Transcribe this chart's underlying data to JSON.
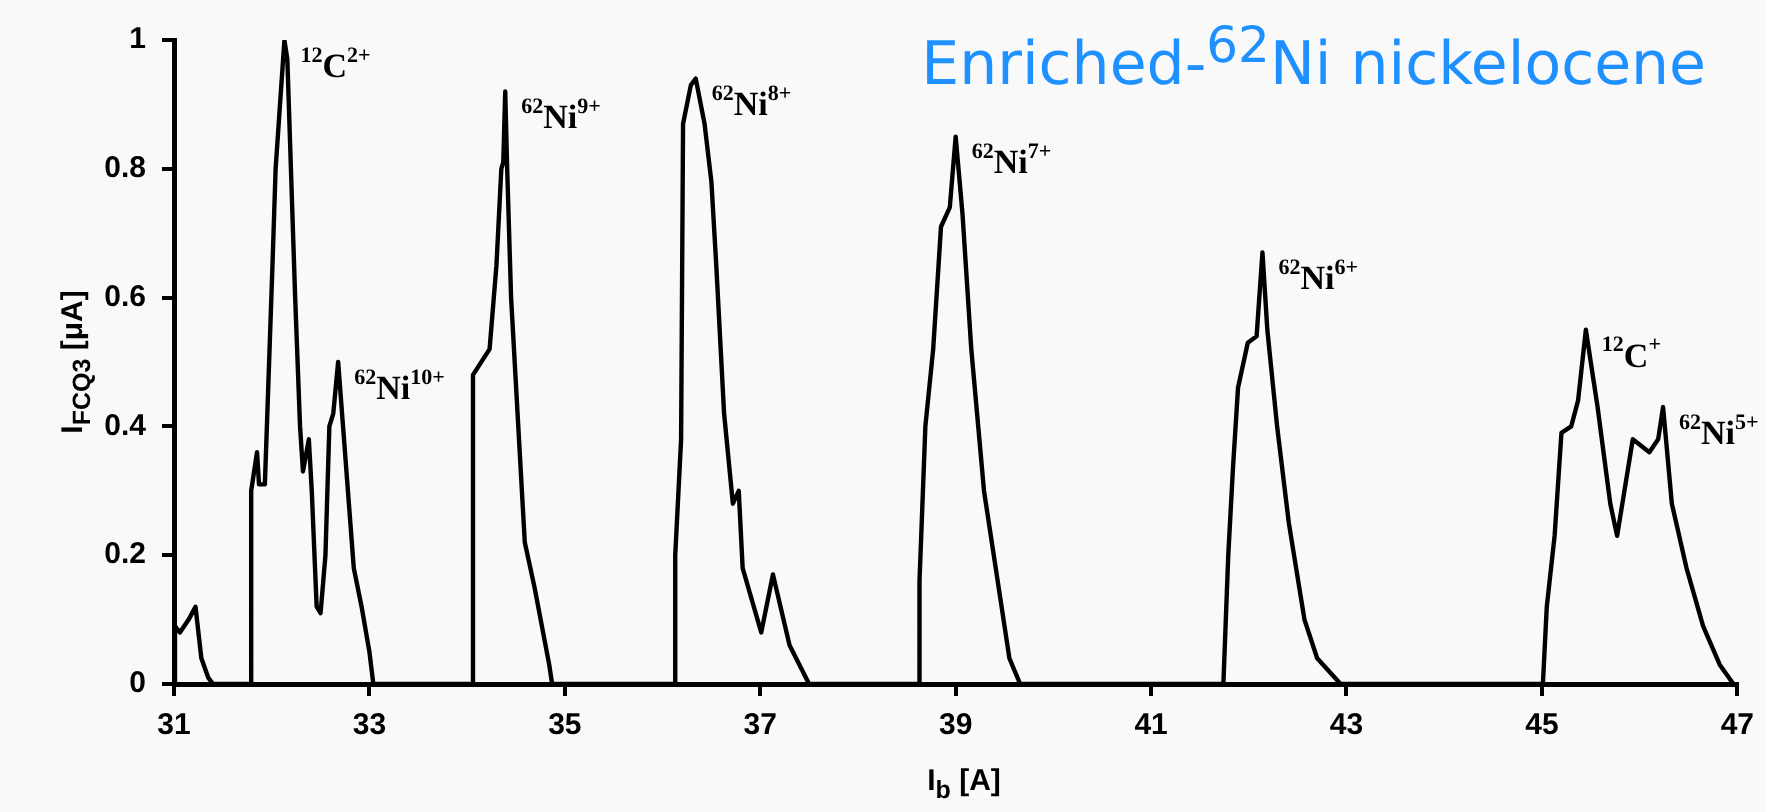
{
  "chart_data": {
    "type": "line",
    "title": "Enriched-$^{62}$Ni nickelocene",
    "xlabel": "I$_{b}$ [A]",
    "ylabel": "I$_{FCQ3}$ [μA]",
    "x": [
      31.0,
      31.01,
      31.06,
      31.15,
      31.22,
      31.28,
      31.35,
      31.4,
      31.78,
      31.79,
      31.85,
      31.87,
      31.93,
      32.01,
      32.04,
      32.13,
      32.16,
      32.24,
      32.29,
      32.32,
      32.38,
      32.41,
      32.46,
      32.5,
      32.55,
      32.59,
      32.63,
      32.68,
      32.73,
      32.84,
      32.92,
      33.0,
      33.04,
      34.05,
      34.06,
      34.23,
      34.3,
      34.35,
      34.37,
      34.39,
      34.41,
      34.45,
      34.59,
      34.69,
      34.84,
      34.87,
      36.12,
      36.13,
      36.19,
      36.21,
      36.29,
      36.34,
      36.43,
      36.5,
      36.55,
      36.63,
      36.72,
      36.78,
      36.82,
      37.01,
      37.13,
      37.3,
      37.5,
      38.62,
      38.63,
      38.69,
      38.77,
      38.85,
      38.94,
      39.0,
      39.07,
      39.16,
      39.29,
      39.5,
      39.55,
      39.66,
      41.74,
      41.79,
      41.84,
      41.89,
      41.99,
      42.08,
      42.14,
      42.19,
      42.29,
      42.41,
      42.57,
      42.7,
      42.94,
      45.01,
      45.05,
      45.13,
      45.2,
      45.3,
      45.37,
      45.45,
      45.57,
      45.7,
      45.77,
      45.93,
      46.1,
      46.19,
      46.24,
      46.33,
      46.48,
      46.65,
      46.82,
      46.96
    ],
    "series": [
      {
        "color": "#000000",
        "values": [
          0,
          0.09,
          0.08,
          0.1,
          0.12,
          0.04,
          0.01,
          0,
          0,
          0.3,
          0.36,
          0.31,
          0.31,
          0.66,
          0.8,
          1.0,
          0.97,
          0.6,
          0.4,
          0.33,
          0.38,
          0.3,
          0.12,
          0.11,
          0.2,
          0.4,
          0.42,
          0.5,
          0.4,
          0.18,
          0.12,
          0.05,
          0,
          0,
          0.48,
          0.52,
          0.65,
          0.8,
          0.81,
          0.92,
          0.8,
          0.6,
          0.22,
          0.15,
          0.03,
          0,
          0,
          0.2,
          0.38,
          0.87,
          0.93,
          0.94,
          0.87,
          0.78,
          0.65,
          0.42,
          0.28,
          0.3,
          0.18,
          0.08,
          0.17,
          0.06,
          0,
          0,
          0.16,
          0.4,
          0.52,
          0.71,
          0.74,
          0.85,
          0.73,
          0.52,
          0.3,
          0.09,
          0.04,
          0,
          0,
          0.2,
          0.34,
          0.46,
          0.53,
          0.54,
          0.67,
          0.55,
          0.4,
          0.25,
          0.1,
          0.04,
          0,
          0,
          0.12,
          0.23,
          0.39,
          0.4,
          0.44,
          0.55,
          0.43,
          0.28,
          0.23,
          0.38,
          0.36,
          0.38,
          0.43,
          0.28,
          0.18,
          0.09,
          0.03,
          0
        ]
      }
    ],
    "xlim": [
      31,
      47
    ],
    "xticks": [
      31,
      33,
      35,
      37,
      39,
      41,
      43,
      45,
      47
    ],
    "ylim": [
      0,
      1
    ],
    "yticks": [
      0,
      {
        "value": 0.2,
        "label": "0.2"
      },
      {
        "value": 0.4,
        "label": "0.4"
      },
      {
        "value": 0.6,
        "label": "0.6"
      },
      {
        "value": 0.8,
        "label": "0.8"
      },
      1
    ],
    "marker": "none",
    "line_style": "solid",
    "grid": false,
    "legend": false,
    "annotations": [
      {
        "text": "$^{12}$C$^{2+}$",
        "x": 32.13,
        "y": 1.0
      },
      {
        "text": "$^{62}$Ni$^{10+}$",
        "x": 32.68,
        "y": 0.5
      },
      {
        "text": "$^{62}$Ni$^{9+}$",
        "x": 34.39,
        "y": 0.92
      },
      {
        "text": "$^{62}$Ni$^{8+}$",
        "x": 36.34,
        "y": 0.94
      },
      {
        "text": "$^{62}$Ni$^{7+}$",
        "x": 39.0,
        "y": 0.85
      },
      {
        "text": "$^{62}$Ni$^{6+}$",
        "x": 42.14,
        "y": 0.67
      },
      {
        "text": "$^{12}$C$^{+}$",
        "x": 45.45,
        "y": 0.55
      },
      {
        "text": "$^{62}$Ni$^{5+}$",
        "x": 46.24,
        "y": 0.43
      }
    ]
  }
}
